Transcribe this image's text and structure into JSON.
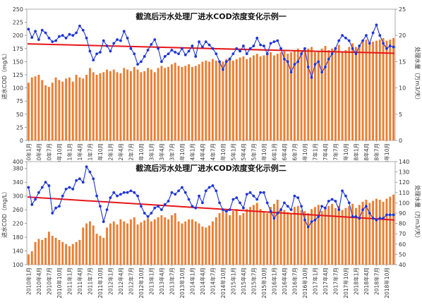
{
  "chart_data": [
    {
      "type": "bar",
      "title": "截流后污水处理厂进水COD浓度变化示例一",
      "ylabel_left": "进水COD（mg/L）",
      "ylabel_right": "处理水量（万m3/天）",
      "ylim_left": [
        0,
        250
      ],
      "yticks_left": [
        "0",
        "25",
        "50",
        "75",
        "100",
        "125",
        "150",
        "175",
        "200",
        "225",
        "250"
      ],
      "ylim_right": [
        0,
        25
      ],
      "yticks_right": [
        "0",
        "5",
        "10",
        "15",
        "20",
        "25"
      ],
      "x_tick_labels": [
        "2010年1月",
        "2010年4月",
        "2010年7月",
        "2010年10月",
        "2011年1月",
        "2011年4月",
        "2011年7月",
        "2011年10月",
        "2012年1月",
        "2012年4月",
        "2012年7月",
        "2012年10月",
        "2013年1月",
        "2013年4月",
        "2013年7月",
        "2013年10月",
        "2014年1月",
        "2014年4月",
        "2014年7月",
        "2014年10月",
        "2015年1月",
        "2015年4月",
        "2015年7月",
        "2015年10月",
        "2016年1月",
        "2016年4月",
        "2016年7月",
        "2016年10月",
        "2017年1月",
        "2017年4月",
        "2017年7月",
        "2017年10月",
        "2018年1月",
        "2018年4月",
        "2018年7月",
        "2018年10月"
      ],
      "series": [
        {
          "kind": "bar",
          "axis": "right",
          "color": "#ED7D31",
          "values": [
            11.0,
            12.0,
            12.2,
            12.5,
            11.5,
            10.5,
            10.2,
            11.0,
            12.0,
            11.5,
            11.2,
            11.8,
            12.0,
            11.2,
            12.5,
            12.0,
            11.8,
            12.5,
            13.8,
            13.0,
            12.5,
            12.8,
            13.0,
            13.5,
            13.2,
            13.5,
            13.0,
            12.8,
            13.8,
            13.5,
            13.2,
            14.0,
            13.5,
            13.0,
            13.2,
            13.8,
            13.5,
            13.0,
            13.8,
            14.2,
            13.8,
            14.0,
            14.5,
            14.8,
            14.2,
            14.0,
            14.2,
            14.5,
            14.0,
            14.2,
            14.5,
            15.0,
            15.2,
            15.0,
            15.5,
            15.2,
            14.8,
            15.0,
            15.5,
            15.8,
            15.2,
            15.5,
            15.8,
            16.0,
            15.5,
            15.8,
            16.2,
            16.5,
            16.0,
            16.2,
            16.5,
            16.8,
            16.2,
            16.5,
            16.8,
            17.0,
            16.5,
            16.8,
            17.2,
            17.5,
            17.0,
            17.2,
            17.5,
            17.8,
            16.8,
            17.0,
            17.5,
            18.0,
            17.2,
            17.5,
            17.8,
            18.2,
            17.0,
            17.2,
            17.8,
            18.5,
            17.8,
            18.2,
            18.8,
            19.2,
            18.5,
            18.8,
            19.0,
            19.2,
            19.5,
            19.0,
            19.2,
            19.5
          ]
        },
        {
          "kind": "line",
          "axis": "left",
          "color": "#1F35D6",
          "values": [
            212,
            196,
            208,
            192,
            210,
            205,
            195,
            188,
            190,
            198,
            200,
            195,
            202,
            200,
            205,
            218,
            210,
            195,
            170,
            153,
            165,
            168,
            190,
            180,
            170,
            185,
            192,
            190,
            208,
            195,
            175,
            165,
            145,
            150,
            160,
            172,
            183,
            192,
            175,
            150,
            160,
            165,
            172,
            168,
            165,
            175,
            163,
            170,
            180,
            160,
            188,
            178,
            188,
            182,
            175,
            165,
            150,
            135,
            150,
            155,
            165,
            175,
            170,
            180,
            165,
            175,
            180,
            195,
            182,
            180,
            165,
            185,
            188,
            190,
            175,
            155,
            150,
            130,
            145,
            150,
            165,
            175,
            140,
            120,
            145,
            150,
            130,
            140,
            155,
            165,
            175,
            190,
            200,
            195,
            190,
            175,
            165,
            180,
            190,
            200,
            185,
            205,
            220,
            200,
            185,
            175,
            180,
            178
          ]
        },
        {
          "kind": "trend",
          "axis": "left",
          "color": "#E81515",
          "start": 184,
          "end": 166
        }
      ]
    },
    {
      "type": "bar",
      "title": "截流后污水处理厂进水COD浓度变化示例二",
      "ylabel_left": "进水COD（mg/L）",
      "ylabel_right": "处理水量（万m3/天）",
      "ylim_left": [
        100,
        400
      ],
      "yticks_left": [
        "100",
        "140",
        "180",
        "220",
        "260",
        "300",
        "340",
        "380",
        "400"
      ],
      "ylim_right": [
        40,
        140
      ],
      "yticks_right": [
        "40",
        "50",
        "60",
        "70",
        "80",
        "90",
        "100",
        "110",
        "120",
        "130",
        "140"
      ],
      "x_tick_labels": [
        "2010年1月",
        "2010年4月",
        "2010年7月",
        "2010年10月",
        "2011年1月",
        "2011年4月",
        "2011年7月",
        "2011年10月",
        "2012年1月",
        "2012年4月",
        "2012年7月",
        "2012年10月",
        "2013年1月",
        "2013年4月",
        "2013年7月",
        "2013年10月",
        "2014年1月",
        "2014年4月",
        "2014年7月",
        "2014年10月",
        "2015年1月",
        "2015年4月",
        "2015年7月",
        "2015年10月",
        "2016年1月",
        "2016年4月",
        "2016年7月",
        "2016年10月",
        "2017年1月",
        "2017年4月",
        "2017年7月",
        "2017年10月",
        "2018年1月",
        "2018年4月",
        "2018年7月",
        "2018年10月"
      ],
      "series": [
        {
          "kind": "bar",
          "axis": "right",
          "color": "#ED7D31",
          "values": [
            50,
            53,
            62,
            65,
            64,
            66,
            72,
            68,
            66,
            64,
            62,
            60,
            58,
            60,
            62,
            64,
            76,
            80,
            82,
            78,
            70,
            68,
            66,
            76,
            80,
            82,
            79,
            84,
            82,
            80,
            84,
            86,
            79,
            81,
            83,
            85,
            82,
            84,
            86,
            88,
            86,
            84,
            88,
            90,
            82,
            80,
            82,
            84,
            84,
            82,
            80,
            77,
            76,
            78,
            82,
            86,
            90,
            92,
            90,
            88,
            92,
            94,
            88,
            90,
            94,
            96,
            98,
            100,
            94,
            92,
            90,
            96,
            99,
            103,
            95,
            93,
            91,
            90,
            96,
            97,
            93,
            92,
            90,
            94,
            96,
            98,
            92,
            95,
            97,
            99,
            95,
            97,
            93,
            95,
            97,
            99,
            95,
            98,
            101,
            103,
            100,
            102,
            104,
            103,
            101,
            104,
            106,
            108
          ]
        },
        {
          "kind": "line",
          "axis": "left",
          "color": "#1F35D6",
          "values": [
            325,
            275,
            290,
            310,
            325,
            340,
            330,
            250,
            265,
            270,
            300,
            320,
            325,
            320,
            345,
            350,
            340,
            385,
            370,
            350,
            300,
            270,
            225,
            260,
            295,
            310,
            300,
            305,
            310,
            310,
            315,
            310,
            300,
            270,
            250,
            240,
            250,
            265,
            270,
            260,
            275,
            285,
            310,
            305,
            315,
            325,
            310,
            290,
            270,
            265,
            300,
            280,
            315,
            325,
            330,
            315,
            280,
            260,
            255,
            260,
            290,
            295,
            280,
            265,
            305,
            310,
            300,
            290,
            310,
            310,
            280,
            255,
            235,
            250,
            260,
            280,
            270,
            260,
            300,
            295,
            270,
            230,
            210,
            225,
            230,
            240,
            270,
            265,
            285,
            290,
            285,
            260,
            315,
            300,
            280,
            240,
            240,
            235,
            260,
            270,
            250,
            235,
            230,
            235,
            235,
            245,
            245,
            245
          ]
        },
        {
          "kind": "trend",
          "axis": "left",
          "color": "#E81515",
          "start": 297,
          "end": 230
        }
      ]
    }
  ]
}
